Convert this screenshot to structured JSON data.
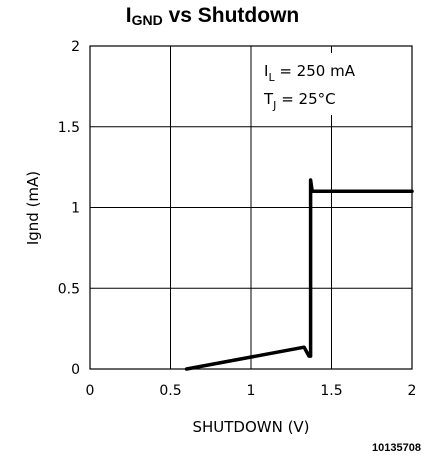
{
  "chart_data": {
    "type": "line",
    "title": {
      "main": "I",
      "sub": "GND",
      "rest": " vs Shutdown"
    },
    "xlabel": "SHUTDOWN (V)",
    "ylabel": "Ignd (mA)",
    "xlim": [
      0,
      2
    ],
    "ylim": [
      0,
      2
    ],
    "xticks": [
      "0",
      "0.5",
      "1",
      "1.5",
      "2"
    ],
    "yticks": [
      "0",
      "0.5",
      "1",
      "1.5",
      "2"
    ],
    "xtick_values": [
      0,
      0.5,
      1,
      1.5,
      2
    ],
    "ytick_values": [
      0,
      0.5,
      1,
      1.5,
      2
    ],
    "grid": true,
    "annotations": [
      {
        "sym": "I",
        "sub": "L",
        "text": " = 250 mA"
      },
      {
        "sym": "T",
        "sub": "J",
        "text": " = 25°C"
      }
    ],
    "series": [
      {
        "x": [
          0.6,
          1.33,
          1.36,
          1.37,
          1.37,
          1.38,
          1.4,
          2.0
        ],
        "y": [
          0.0,
          0.135,
          0.08,
          0.08,
          1.17,
          1.1,
          1.1,
          1.1
        ]
      }
    ],
    "figure_number": "10135708"
  }
}
